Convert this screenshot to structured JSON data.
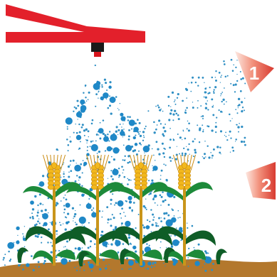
{
  "badges": [
    {
      "label": "1"
    },
    {
      "label": "2"
    }
  ],
  "colors": {
    "boom": "#e3202b",
    "nozzle": "#1a1a1a",
    "nozzle_tip": "#d8141c",
    "spray_fine": "#2f8fc4",
    "spray_coarse": "#1f88c7",
    "badge_light": "#fbe1d8",
    "badge_dark": "#e0433a",
    "stalk": "#c9951b",
    "grain": "#f2b81d",
    "grain_dark": "#c98a10",
    "leaf": "#1d8a3a",
    "leaf_dark": "#0f5d27",
    "soil": "#b3782d"
  },
  "icons": [
    "sprayer-boom-icon",
    "spray-nozzle-icon",
    "wheat-plant-icon"
  ]
}
